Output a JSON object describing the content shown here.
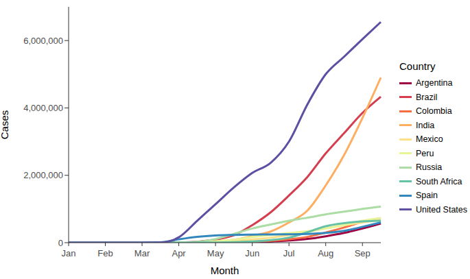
{
  "chart_data": {
    "type": "line",
    "x_label": "Month",
    "y_label": "Cases",
    "legend_title": "Country",
    "legend": "right",
    "grid": false,
    "categories": [
      "Jan",
      null,
      "Feb",
      null,
      "Mar",
      null,
      "Apr",
      null,
      "May",
      null,
      "Jun",
      null,
      "Jul",
      null,
      "Aug",
      null,
      "Sep",
      null
    ],
    "ylim": [
      0,
      7000000
    ],
    "yticks": [
      0,
      {
        "value": 2000000,
        "label": "2,000,000"
      },
      {
        "value": 4000000,
        "label": "4,000,000"
      },
      {
        "value": 6000000,
        "label": "6,000,000"
      }
    ],
    "series": [
      {
        "name": "Argentina",
        "color": "#9E0142",
        "values": [
          0,
          0,
          0,
          0,
          1,
          50,
          1000,
          2500,
          4500,
          7000,
          17000,
          32000,
          65000,
          110000,
          190000,
          290000,
          420000,
          570000
        ]
      },
      {
        "name": "Brazil",
        "color": "#D53E4F",
        "values": [
          0,
          0,
          0,
          0,
          2,
          200,
          6000,
          28000,
          90000,
          220000,
          520000,
          900000,
          1400000,
          1950000,
          2650000,
          3250000,
          3850000,
          4330000
        ]
      },
      {
        "name": "Colombia",
        "color": "#F46D43",
        "values": [
          0,
          0,
          0,
          0,
          0,
          30,
          1000,
          3000,
          7000,
          15000,
          30000,
          55000,
          100000,
          170000,
          300000,
          450000,
          620000,
          730000
        ]
      },
      {
        "name": "India",
        "color": "#FDAE61",
        "values": [
          0,
          0,
          1,
          3,
          3,
          100,
          1600,
          12000,
          35000,
          85000,
          200000,
          330000,
          600000,
          950000,
          1700000,
          2600000,
          3700000,
          4900000
        ]
      },
      {
        "name": "Mexico",
        "color": "#FEE08B",
        "values": [
          0,
          0,
          0,
          0,
          5,
          50,
          1200,
          5400,
          20000,
          45000,
          95000,
          150000,
          230000,
          320000,
          425000,
          520000,
          600000,
          680000
        ]
      },
      {
        "name": "Peru",
        "color": "#E6F598",
        "values": [
          0,
          0,
          0,
          0,
          0,
          40,
          1100,
          10000,
          40000,
          85000,
          170000,
          230000,
          285000,
          340000,
          420000,
          525000,
          650000,
          730000
        ]
      },
      {
        "name": "Russia",
        "color": "#ABDDA4",
        "values": [
          0,
          0,
          2,
          2,
          2,
          60,
          2800,
          25000,
          110000,
          260000,
          420000,
          540000,
          650000,
          740000,
          840000,
          920000,
          1000000,
          1070000
        ]
      },
      {
        "name": "South Africa",
        "color": "#66C2A5",
        "values": [
          0,
          0,
          0,
          0,
          0,
          50,
          1400,
          2600,
          5500,
          13000,
          35000,
          75000,
          150000,
          310000,
          490000,
          580000,
          630000,
          650000
        ]
      },
      {
        "name": "Spain",
        "color": "#3288BD",
        "values": [
          0,
          0,
          1,
          2,
          80,
          8000,
          100000,
          175000,
          215000,
          230000,
          240000,
          245000,
          250000,
          260000,
          290000,
          350000,
          470000,
          600000
        ]
      },
      {
        "name": "United States",
        "color": "#5E4FA2",
        "values": [
          0,
          0,
          8,
          15,
          75,
          3500,
          160000,
          650000,
          1140000,
          1640000,
          2070000,
          2370000,
          3000000,
          4100000,
          5000000,
          5520000,
          6040000,
          6550000
        ]
      }
    ]
  }
}
